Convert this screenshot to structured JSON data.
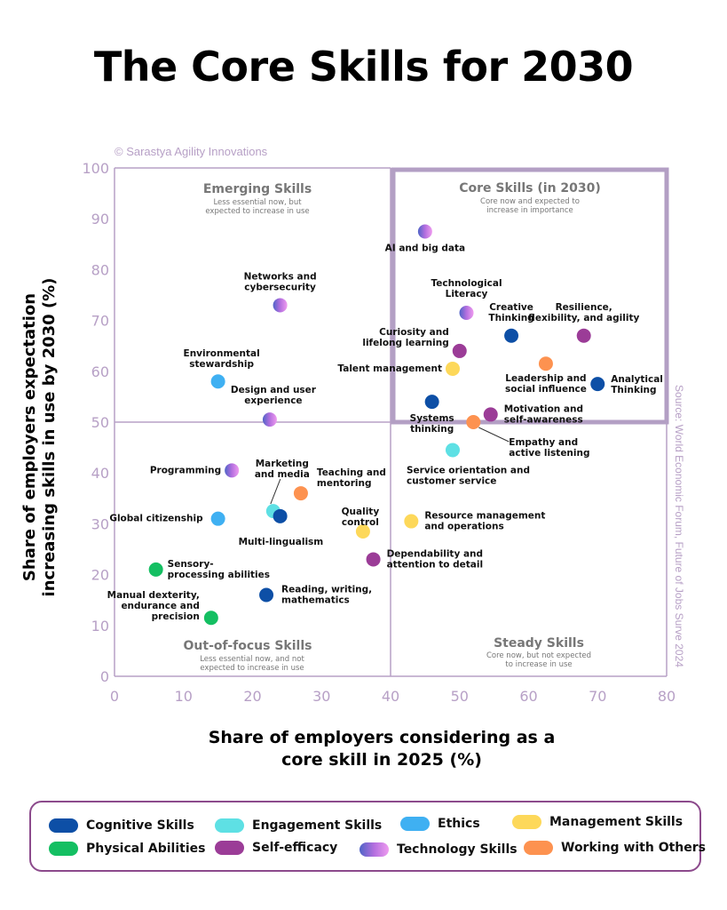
{
  "title": "The Core Skills for 2030",
  "copyright": "© Sarastya Agility Innovations",
  "source": "Source: World Economic Forum, Future of Jobs Surve 2024",
  "colors": {
    "axis": "#b7a0c6",
    "quadrant_line": "#b7a0c6",
    "core_box": "#b39fc4",
    "legend_border": "#8c4a8c"
  },
  "quadrants": {
    "emerging": {
      "title": "Emerging Skills",
      "lines": [
        "Less essential now, but",
        "expected to increase in use"
      ]
    },
    "core": {
      "title": "Core Skills (in 2030)",
      "lines": [
        "Core now and expected to",
        "increase in importance"
      ]
    },
    "out_of_focus": {
      "title": "Out-of-focus Skills",
      "lines": [
        "Less essential now, and not",
        "expected to increase in use"
      ]
    },
    "steady": {
      "title": "Steady Skills",
      "lines": [
        "Core now, but not expected",
        "to increase in use"
      ]
    }
  },
  "legend": [
    {
      "name": "Cognitive Skills",
      "color": "#0d4fa6"
    },
    {
      "name": "Engagement Skills",
      "color": "#5ee0e4"
    },
    {
      "name": "Ethics",
      "color": "#3fb0f2"
    },
    {
      "name": "Management Skills",
      "color": "#fdd85a"
    },
    {
      "name": "Physical Abilities",
      "color": "#14bf62"
    },
    {
      "name": "Self-efficacy",
      "color": "#9b3c97"
    },
    {
      "name": "Technology Skills",
      "color": "technology-gradient"
    },
    {
      "name": "Working with Others",
      "color": "#fd9250"
    }
  ],
  "chart_data": {
    "type": "scatter",
    "title": "The Core Skills for 2030",
    "xlabel": "Share of employers considering as a core skill in 2025 (%)",
    "xlabel_lines": [
      "Share of employers considering as a",
      "core skill in 2025 (%)"
    ],
    "ylabel": "Share of employers expectation increasing skills in use by 2030 (%)",
    "ylabel_lines": [
      "Share of employers expectation",
      "increasing skills in use by 2030 (%)"
    ],
    "xlim": [
      0,
      80
    ],
    "ylim": [
      0,
      100
    ],
    "xticks": [
      "0",
      "10",
      "20",
      "30",
      "40",
      "50",
      "60",
      "70",
      "80"
    ],
    "yticks": [
      "0",
      "10",
      "20",
      "30",
      "40",
      "50",
      "60",
      "70",
      "80",
      "90",
      "100"
    ],
    "quadrant_split": {
      "x": 40,
      "y": 50
    },
    "points": [
      {
        "name": "AI and big data",
        "lines": [
          "AI and big data"
        ],
        "x": 45,
        "y": 87.5,
        "category": "Technology Skills"
      },
      {
        "name": "Networks and cybersecurity",
        "lines": [
          "Networks and",
          "cybersecurity"
        ],
        "x": 24,
        "y": 73,
        "category": "Technology Skills"
      },
      {
        "name": "Technological Literacy",
        "lines": [
          "Technological",
          "Literacy"
        ],
        "x": 51,
        "y": 71.5,
        "category": "Technology Skills"
      },
      {
        "name": "Creative Thinking",
        "lines": [
          "Creative",
          "Thinking"
        ],
        "x": 57.5,
        "y": 67,
        "category": "Cognitive Skills"
      },
      {
        "name": "Resilience, flexibility, and agility",
        "lines": [
          "Resilience,",
          "flexibility, and agility"
        ],
        "x": 68,
        "y": 67,
        "category": "Self-efficacy"
      },
      {
        "name": "Curiosity and lifelong learning",
        "lines": [
          "Curiosity and",
          "lifelong learning"
        ],
        "x": 50,
        "y": 64,
        "category": "Self-efficacy"
      },
      {
        "name": "Talent management",
        "lines": [
          "Talent management"
        ],
        "x": 49,
        "y": 60.5,
        "category": "Management Skills"
      },
      {
        "name": "Leadership and social influence",
        "lines": [
          "Leadership and",
          "social influence"
        ],
        "x": 62.5,
        "y": 61.5,
        "category": "Working with Others"
      },
      {
        "name": "Environmental stewardship",
        "lines": [
          "Environmental",
          "stewardship"
        ],
        "x": 15,
        "y": 58,
        "category": "Ethics"
      },
      {
        "name": "Analytical Thinking",
        "lines": [
          "Analytical",
          "Thinking"
        ],
        "x": 70,
        "y": 57.5,
        "category": "Cognitive Skills"
      },
      {
        "name": "Systems thinking",
        "lines": [
          "Systems",
          "thinking"
        ],
        "x": 46,
        "y": 54,
        "category": "Cognitive Skills"
      },
      {
        "name": "Motivation and self-awareness",
        "lines": [
          "Motivation and",
          "self-awareness"
        ],
        "x": 54.5,
        "y": 51.5,
        "category": "Self-efficacy"
      },
      {
        "name": "Design and user experience",
        "lines": [
          "Design and user",
          "experience"
        ],
        "x": 22.5,
        "y": 50.5,
        "category": "Technology Skills"
      },
      {
        "name": "Empathy and active listening",
        "lines": [
          "Empathy and",
          "active listening"
        ],
        "x": 52,
        "y": 50,
        "category": "Working with Others"
      },
      {
        "name": "Service orientation and customer service",
        "lines": [
          "Service orientation and",
          "customer service"
        ],
        "x": 49,
        "y": 44.5,
        "category": "Engagement Skills"
      },
      {
        "name": "Programming",
        "lines": [
          "Programming"
        ],
        "x": 17,
        "y": 40.5,
        "category": "Technology Skills"
      },
      {
        "name": "Teaching and mentoring",
        "lines": [
          "Teaching and",
          "mentoring"
        ],
        "x": 27,
        "y": 36,
        "category": "Working with Others"
      },
      {
        "name": "Marketing and media",
        "lines": [
          "Marketing",
          "and media"
        ],
        "x": 23,
        "y": 32.5,
        "category": "Engagement Skills"
      },
      {
        "name": "Multi-lingualism",
        "lines": [
          "Multi-lingualism"
        ],
        "x": 24,
        "y": 31.5,
        "category": "Cognitive Skills"
      },
      {
        "name": "Global citizenship",
        "lines": [
          "Global citizenship"
        ],
        "x": 15,
        "y": 31,
        "category": "Ethics"
      },
      {
        "name": "Resource management and operations",
        "lines": [
          "Resource management",
          "and operations"
        ],
        "x": 43,
        "y": 30.5,
        "category": "Management Skills"
      },
      {
        "name": "Quality control",
        "lines": [
          "Quality",
          "control"
        ],
        "x": 36,
        "y": 28.5,
        "category": "Management Skills"
      },
      {
        "name": "Dependability and attention to detail",
        "lines": [
          "Dependability and",
          "attention to detail"
        ],
        "x": 37.5,
        "y": 23,
        "category": "Self-efficacy"
      },
      {
        "name": "Sensory-processing abilities",
        "lines": [
          "Sensory-",
          "processing abilities"
        ],
        "x": 6,
        "y": 21,
        "category": "Physical Abilities"
      },
      {
        "name": "Reading, writing, mathematics",
        "lines": [
          "Reading, writing,",
          "mathematics"
        ],
        "x": 22,
        "y": 16,
        "category": "Cognitive Skills"
      },
      {
        "name": "Manual dexterity, endurance and precision",
        "lines": [
          "Manual dexterity,",
          "endurance and",
          "precision"
        ],
        "x": 14,
        "y": 11.5,
        "category": "Physical Abilities"
      }
    ]
  }
}
